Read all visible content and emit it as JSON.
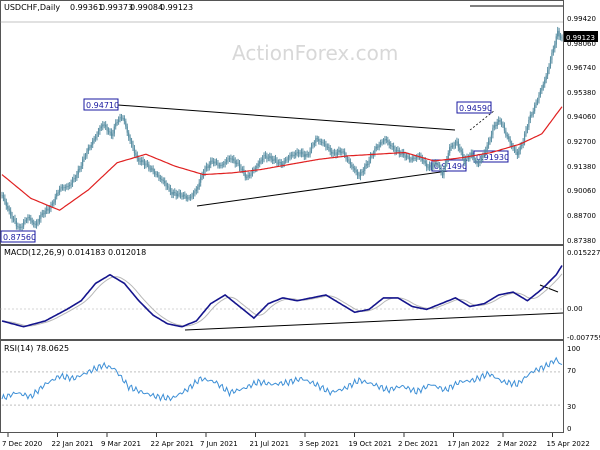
{
  "chart_data": [
    {
      "type": "candlestick",
      "title": "USDCHF,Daily",
      "ohlc": [
        "0.99361",
        "0.99373",
        "0.99084",
        "0.99123"
      ],
      "last_price": "0.99123",
      "watermark": "ActionForex.com",
      "ylim": [
        0.8711,
        1.0066
      ],
      "yticks": [
        "0.99420",
        "0.98060",
        "0.96740",
        "0.95380",
        "0.94060",
        "0.92700",
        "0.91380",
        "0.90060",
        "0.88700",
        "0.87380"
      ],
      "xticks": [
        "7 Dec 2020",
        "22 Jan 2021",
        "9 Mar 2021",
        "22 Apr 2021",
        "7 Jun 2021",
        "21 Jul 2021",
        "3 Sep 2021",
        "19 Oct 2021",
        "2 Dec 2021",
        "17 Jan 2022",
        "2 Mar 2022",
        "15 Apr 2022"
      ],
      "annotations": [
        "0.94710",
        "0.94590",
        "0.91490",
        "0.91930",
        "0.87560"
      ],
      "series_color": "#5a8fa3",
      "ma_color": "#e02020",
      "line_color": "#000000",
      "anchors": [
        [
          0,
          0.9
        ],
        [
          6,
          0.888
        ],
        [
          12,
          0.88
        ],
        [
          18,
          0.887
        ],
        [
          23,
          0.882
        ],
        [
          28,
          0.889
        ],
        [
          34,
          0.893
        ],
        [
          40,
          0.904
        ],
        [
          46,
          0.905
        ],
        [
          52,
          0.912
        ],
        [
          58,
          0.924
        ],
        [
          64,
          0.933
        ],
        [
          70,
          0.942
        ],
        [
          76,
          0.935
        ],
        [
          80,
          0.944
        ],
        [
          84,
          0.946
        ],
        [
          88,
          0.934
        ],
        [
          94,
          0.921
        ],
        [
          100,
          0.918
        ],
        [
          106,
          0.913
        ],
        [
          112,
          0.908
        ],
        [
          118,
          0.901
        ],
        [
          124,
          0.9
        ],
        [
          130,
          0.898
        ],
        [
          135,
          0.903
        ],
        [
          140,
          0.914
        ],
        [
          146,
          0.92
        ],
        [
          152,
          0.917
        ],
        [
          158,
          0.922
        ],
        [
          164,
          0.918
        ],
        [
          170,
          0.91
        ],
        [
          176,
          0.916
        ],
        [
          182,
          0.923
        ],
        [
          188,
          0.921
        ],
        [
          194,
          0.918
        ],
        [
          200,
          0.923
        ],
        [
          206,
          0.925
        ],
        [
          212,
          0.923
        ],
        [
          218,
          0.933
        ],
        [
          224,
          0.93
        ],
        [
          230,
          0.924
        ],
        [
          236,
          0.926
        ],
        [
          242,
          0.918
        ],
        [
          248,
          0.911
        ],
        [
          254,
          0.919
        ],
        [
          260,
          0.928
        ],
        [
          266,
          0.933
        ],
        [
          272,
          0.927
        ],
        [
          278,
          0.924
        ],
        [
          284,
          0.921
        ],
        [
          290,
          0.923
        ],
        [
          296,
          0.916
        ],
        [
          302,
          0.919
        ],
        [
          306,
          0.912
        ],
        [
          311,
          0.928
        ],
        [
          316,
          0.931
        ],
        [
          321,
          0.92
        ],
        [
          326,
          0.924
        ],
        [
          330,
          0.918
        ],
        [
          334,
          0.923
        ],
        [
          338,
          0.931
        ],
        [
          342,
          0.941
        ],
        [
          346,
          0.944
        ],
        [
          350,
          0.936
        ],
        [
          354,
          0.929
        ],
        [
          358,
          0.924
        ],
        [
          362,
          0.932
        ],
        [
          366,
          0.944
        ],
        [
          370,
          0.952
        ],
        [
          374,
          0.961
        ],
        [
          378,
          0.97
        ],
        [
          382,
          0.983
        ],
        [
          386,
          0.996
        ],
        [
          389,
          0.9912
        ]
      ],
      "ma_anchors": [
        [
          0,
          0.912
        ],
        [
          20,
          0.898
        ],
        [
          40,
          0.891
        ],
        [
          60,
          0.903
        ],
        [
          80,
          0.919
        ],
        [
          100,
          0.924
        ],
        [
          120,
          0.917
        ],
        [
          140,
          0.912
        ],
        [
          160,
          0.913
        ],
        [
          180,
          0.915
        ],
        [
          200,
          0.918
        ],
        [
          220,
          0.921
        ],
        [
          240,
          0.923
        ],
        [
          260,
          0.924
        ],
        [
          280,
          0.925
        ],
        [
          300,
          0.92
        ],
        [
          320,
          0.922
        ],
        [
          340,
          0.925
        ],
        [
          360,
          0.93
        ],
        [
          375,
          0.936
        ],
        [
          389,
          0.952
        ]
      ]
    },
    {
      "type": "line",
      "title": "MACD(12,26,9) 0.014183 0.012018",
      "yticks": [
        "0.015227",
        "0.00",
        "-0.007759"
      ],
      "ylim": [
        -0.0109,
        0.0168
      ],
      "anchors": [
        [
          0,
          -0.005
        ],
        [
          15,
          -0.007
        ],
        [
          30,
          -0.005
        ],
        [
          45,
          -0.001
        ],
        [
          55,
          0.002
        ],
        [
          65,
          0.008
        ],
        [
          75,
          0.011
        ],
        [
          85,
          0.008
        ],
        [
          95,
          0.002
        ],
        [
          105,
          -0.003
        ],
        [
          115,
          -0.006
        ],
        [
          125,
          -0.007
        ],
        [
          135,
          -0.005
        ],
        [
          145,
          0.001
        ],
        [
          155,
          0.004
        ],
        [
          165,
          0.0
        ],
        [
          175,
          -0.004
        ],
        [
          185,
          0.001
        ],
        [
          195,
          0.003
        ],
        [
          205,
          0.002
        ],
        [
          215,
          0.003
        ],
        [
          225,
          0.004
        ],
        [
          235,
          0.001
        ],
        [
          245,
          -0.002
        ],
        [
          255,
          -0.001
        ],
        [
          265,
          0.003
        ],
        [
          275,
          0.003
        ],
        [
          285,
          0.0
        ],
        [
          295,
          -0.001
        ],
        [
          305,
          0.001
        ],
        [
          315,
          0.003
        ],
        [
          325,
          0.0
        ],
        [
          335,
          0.001
        ],
        [
          345,
          0.004
        ],
        [
          355,
          0.005
        ],
        [
          365,
          0.002
        ],
        [
          375,
          0.006
        ],
        [
          385,
          0.011
        ],
        [
          389,
          0.0142
        ]
      ]
    },
    {
      "type": "line",
      "title": "RSI(14) 78.0625",
      "yticks": [
        "100",
        "70",
        "30",
        "0"
      ],
      "ylim": [
        0,
        100
      ],
      "level_color": "#3d8fd6",
      "anchors": [
        [
          0,
          38
        ],
        [
          10,
          45
        ],
        [
          20,
          40
        ],
        [
          30,
          55
        ],
        [
          40,
          65
        ],
        [
          50,
          62
        ],
        [
          60,
          70
        ],
        [
          70,
          78
        ],
        [
          78,
          74
        ],
        [
          88,
          52
        ],
        [
          98,
          45
        ],
        [
          108,
          40
        ],
        [
          118,
          38
        ],
        [
          128,
          48
        ],
        [
          138,
          62
        ],
        [
          148,
          58
        ],
        [
          158,
          45
        ],
        [
          168,
          50
        ],
        [
          178,
          58
        ],
        [
          188,
          55
        ],
        [
          198,
          57
        ],
        [
          208,
          62
        ],
        [
          218,
          55
        ],
        [
          228,
          45
        ],
        [
          238,
          50
        ],
        [
          248,
          60
        ],
        [
          258,
          55
        ],
        [
          268,
          48
        ],
        [
          278,
          53
        ],
        [
          288,
          46
        ],
        [
          298,
          55
        ],
        [
          308,
          48
        ],
        [
          318,
          58
        ],
        [
          328,
          60
        ],
        [
          338,
          68
        ],
        [
          348,
          58
        ],
        [
          358,
          55
        ],
        [
          368,
          70
        ],
        [
          378,
          77
        ],
        [
          385,
          85
        ],
        [
          389,
          78
        ]
      ]
    }
  ]
}
